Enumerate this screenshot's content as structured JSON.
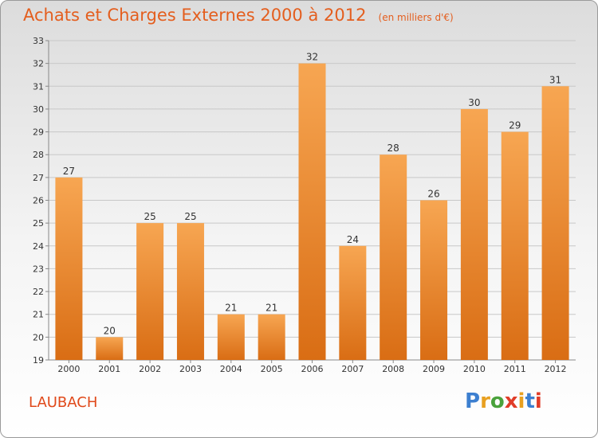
{
  "title": {
    "main": "Achats et Charges Externes 2000 à 2012",
    "unit": "(en milliers d'€)"
  },
  "commune": "LAUBACH",
  "logo": {
    "letters": [
      "P",
      "r",
      "o",
      "x",
      "i",
      "t",
      "i"
    ],
    "colors": [
      "#3c7fd0",
      "#e8a020",
      "#4aa23c",
      "#e03c28",
      "#e8a020",
      "#3c7fd0",
      "#e03c28"
    ]
  },
  "colors": {
    "title": "#e45e1e",
    "bar_light": "#f7a652",
    "bar_dark": "#d96d14"
  },
  "chart_data": {
    "type": "bar",
    "title": "Achats et Charges Externes 2000 à 2012",
    "subtitle": "(en milliers d'€)",
    "categories": [
      "2000",
      "2001",
      "2002",
      "2003",
      "2004",
      "2005",
      "2006",
      "2007",
      "2008",
      "2009",
      "2010",
      "2011",
      "2012"
    ],
    "values": [
      27,
      20,
      25,
      25,
      21,
      21,
      32,
      24,
      28,
      26,
      30,
      29,
      31
    ],
    "ylim": [
      19,
      33
    ],
    "yticks": [
      19,
      20,
      21,
      22,
      23,
      24,
      25,
      26,
      27,
      28,
      29,
      30,
      31,
      32,
      33
    ],
    "grid": true
  }
}
